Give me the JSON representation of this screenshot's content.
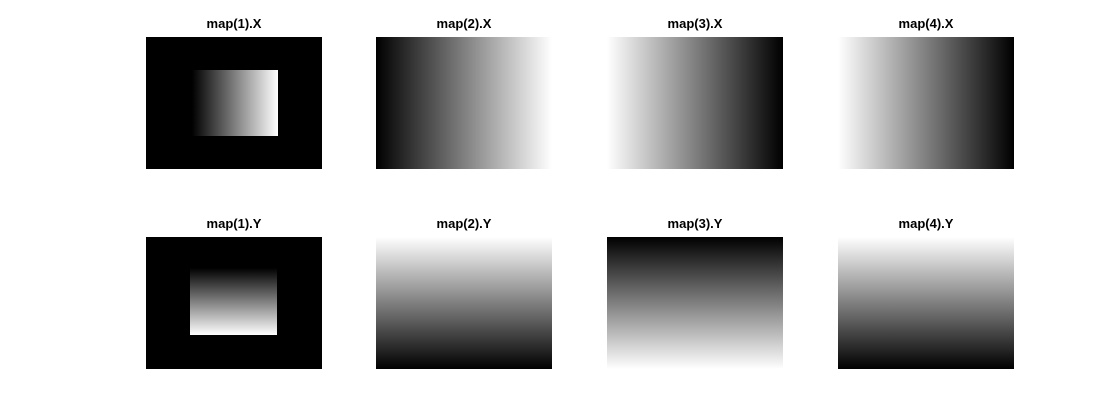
{
  "figure": {
    "background": "#ffffff",
    "panels": [
      {
        "title": "map(1).X",
        "direction": "horizontal",
        "from": "#000000",
        "to": "#ffffff",
        "inner_rect": true,
        "outer": "#000000"
      },
      {
        "title": "map(2).X",
        "direction": "horizontal",
        "from": "#000000",
        "to": "#ffffff",
        "inner_rect": false
      },
      {
        "title": "map(3).X",
        "direction": "horizontal",
        "from": "#ffffff",
        "to": "#000000",
        "inner_rect": false
      },
      {
        "title": "map(4).X",
        "direction": "horizontal",
        "from": "#ffffff",
        "to": "#000000",
        "inner_rect": false
      },
      {
        "title": "map(1).Y",
        "direction": "vertical",
        "from": "#000000",
        "to": "#ffffff",
        "inner_rect": true,
        "outer": "#000000"
      },
      {
        "title": "map(2).Y",
        "direction": "vertical",
        "from": "#ffffff",
        "to": "#000000",
        "inner_rect": false
      },
      {
        "title": "map(3).Y",
        "direction": "vertical",
        "from": "#000000",
        "to": "#ffffff",
        "inner_rect": false
      },
      {
        "title": "map(4).Y",
        "direction": "vertical",
        "from": "#ffffff",
        "to": "#000000",
        "inner_rect": false
      }
    ]
  }
}
